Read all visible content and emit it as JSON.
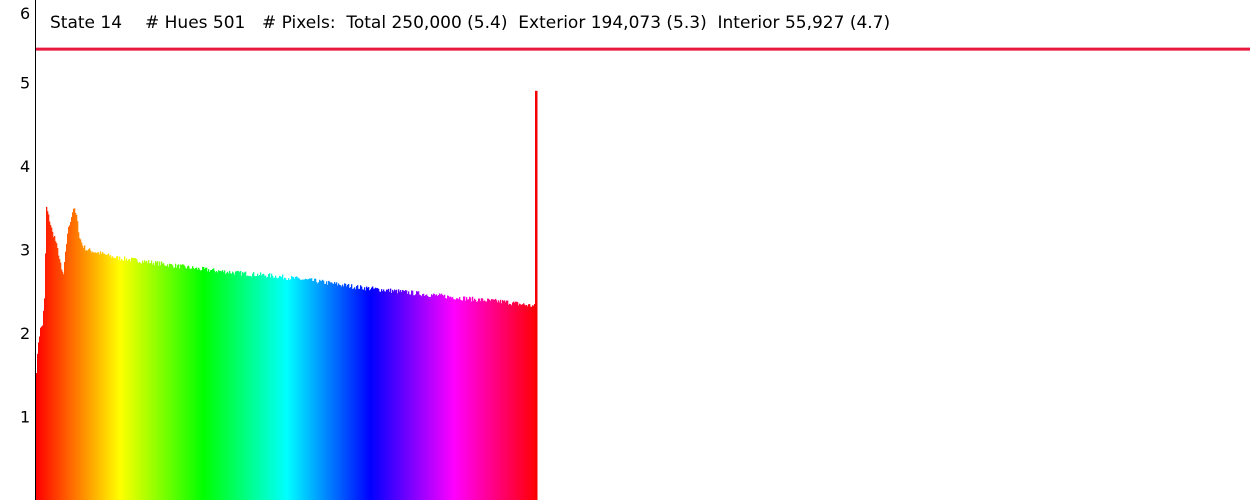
{
  "header": {
    "state": "State 14",
    "hues": "# Hues 501",
    "pixels": "# Pixels:  Total 250,000 (5.4)  Exterior 194,073 (5.3)  Interior 55,927 (4.7)"
  },
  "colors": {
    "reference_line": "#e8193c",
    "axis": "#000000",
    "background": "#ffffff"
  },
  "chart_data": {
    "type": "bar",
    "title": "",
    "xlabel": "",
    "ylabel": "",
    "ylim": [
      0,
      6
    ],
    "y_ticks": [
      "1",
      "2",
      "3",
      "4",
      "5",
      "6"
    ],
    "reference_line": 5.4,
    "hue_count": 501,
    "color_by": "hue",
    "grid": false,
    "legend": "none",
    "profile": [
      {
        "hue": 0,
        "value": 1.55
      },
      {
        "hue": 2,
        "value": 1.9
      },
      {
        "hue": 4,
        "value": 2.05
      },
      {
        "hue": 6,
        "value": 2.1
      },
      {
        "hue": 8,
        "value": 2.4
      },
      {
        "hue": 10,
        "value": 3.5
      },
      {
        "hue": 12,
        "value": 3.4
      },
      {
        "hue": 14,
        "value": 3.3
      },
      {
        "hue": 16,
        "value": 3.2
      },
      {
        "hue": 18,
        "value": 3.15
      },
      {
        "hue": 20,
        "value": 3.05
      },
      {
        "hue": 22,
        "value": 2.95
      },
      {
        "hue": 25,
        "value": 2.75
      },
      {
        "hue": 27,
        "value": 2.7
      },
      {
        "hue": 29,
        "value": 2.95
      },
      {
        "hue": 31,
        "value": 3.2
      },
      {
        "hue": 34,
        "value": 3.35
      },
      {
        "hue": 37,
        "value": 3.5
      },
      {
        "hue": 40,
        "value": 3.4
      },
      {
        "hue": 43,
        "value": 3.15
      },
      {
        "hue": 46,
        "value": 3.05
      },
      {
        "hue": 50,
        "value": 3.0
      },
      {
        "hue": 56,
        "value": 2.98
      },
      {
        "hue": 65,
        "value": 2.95
      },
      {
        "hue": 80,
        "value": 2.9
      },
      {
        "hue": 100,
        "value": 2.87
      },
      {
        "hue": 130,
        "value": 2.82
      },
      {
        "hue": 160,
        "value": 2.77
      },
      {
        "hue": 200,
        "value": 2.72
      },
      {
        "hue": 240,
        "value": 2.68
      },
      {
        "hue": 280,
        "value": 2.62
      },
      {
        "hue": 320,
        "value": 2.55
      },
      {
        "hue": 360,
        "value": 2.5
      },
      {
        "hue": 400,
        "value": 2.45
      },
      {
        "hue": 440,
        "value": 2.4
      },
      {
        "hue": 470,
        "value": 2.37
      },
      {
        "hue": 499,
        "value": 2.32
      }
    ],
    "spikes": [
      {
        "hue": 500,
        "value": 4.9
      }
    ]
  }
}
